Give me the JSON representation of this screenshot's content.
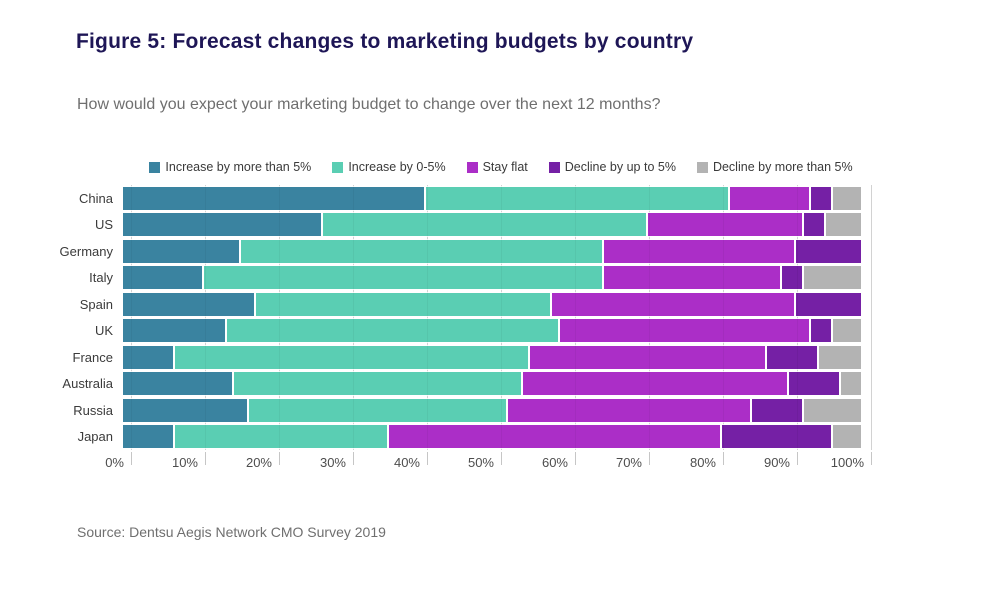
{
  "title": "Figure 5: Forecast changes to marketing budgets by country",
  "subtitle": "How would you expect your marketing budget to change over the next 12 months?",
  "source": "Source: Dentsu Aegis Network CMO Survey 2019",
  "colors": {
    "title_navy": "#1e1656",
    "subtitle_gray": "#6f6f6f",
    "axis_gray": "#4d4d4d",
    "gridline": "#dcdcdc"
  },
  "chart_data": {
    "type": "bar",
    "stacked": true,
    "orientation": "horizontal",
    "units": "percent",
    "xlim": [
      0,
      100
    ],
    "x_ticks": [
      "0%",
      "10%",
      "20%",
      "30%",
      "40%",
      "50%",
      "60%",
      "70%",
      "80%",
      "90%",
      "100%"
    ],
    "x_tick_values": [
      0,
      10,
      20,
      30,
      40,
      50,
      60,
      70,
      80,
      90,
      100
    ],
    "grid": true,
    "legend_position": "top",
    "categories": [
      "China",
      "US",
      "Germany",
      "Italy",
      "Spain",
      "UK",
      "France",
      "Australia",
      "Russia",
      "Japan"
    ],
    "series": [
      {
        "name": "Increase by more than 5%",
        "color": "#3a83a0",
        "values": [
          41,
          27,
          16,
          11,
          18,
          14,
          7,
          15,
          17,
          7
        ]
      },
      {
        "name": "Increase by 0-5%",
        "color": "#5aceb3",
        "values": [
          41,
          44,
          49,
          54,
          40,
          45,
          48,
          39,
          35,
          29
        ]
      },
      {
        "name": "Stay flat",
        "color": "#ab2ec7",
        "values": [
          11,
          21,
          26,
          24,
          33,
          34,
          32,
          36,
          33,
          45
        ]
      },
      {
        "name": "Decline by up to 5%",
        "color": "#7520a5",
        "values": [
          3,
          3,
          9,
          3,
          9,
          3,
          7,
          7,
          7,
          15
        ]
      },
      {
        "name": "Decline by more than 5%",
        "color": "#b3b3b3",
        "values": [
          4,
          5,
          0,
          8,
          0,
          4,
          6,
          3,
          8,
          4
        ]
      }
    ]
  }
}
